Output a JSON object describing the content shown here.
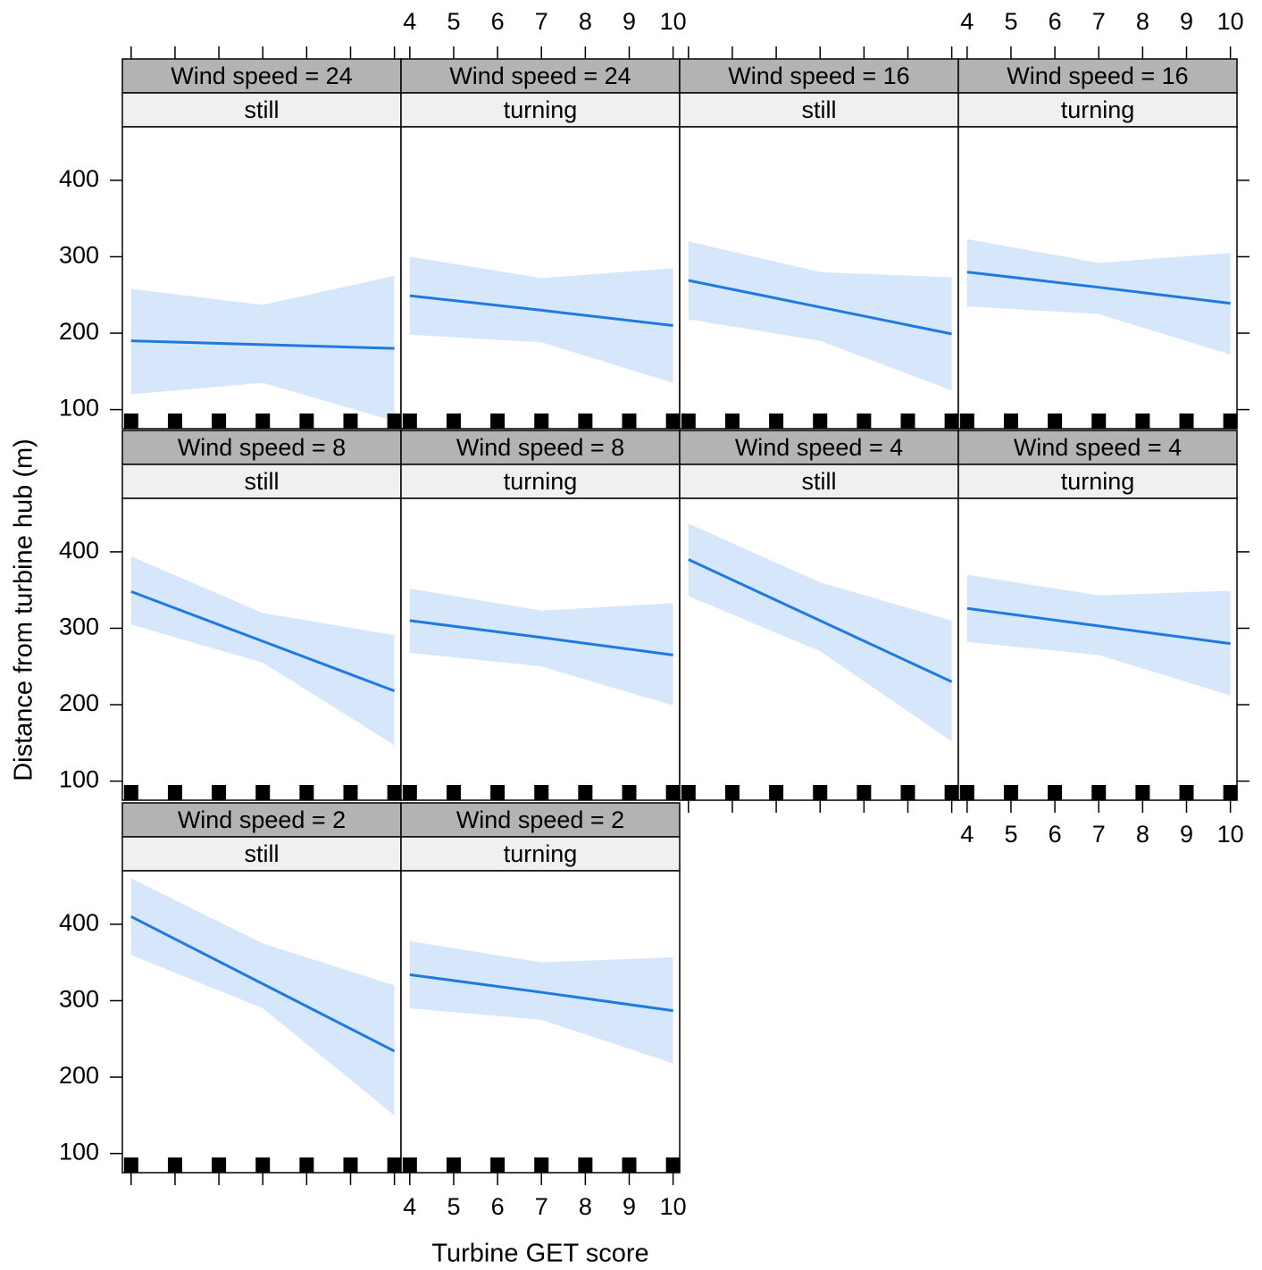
{
  "chart_data": {
    "type": "line",
    "xlabel": "Turbine GET score",
    "ylabel": "Distance from turbine hub (m)",
    "x": [
      4,
      7,
      10
    ],
    "xlim": [
      3.8,
      10.15
    ],
    "ylim": [
      75,
      470
    ],
    "xticks": [
      4,
      5,
      6,
      7,
      8,
      9,
      10
    ],
    "yticks": [
      100,
      200,
      300,
      400
    ],
    "rug": [
      4,
      5,
      6,
      7,
      8,
      9,
      10
    ],
    "line_color": "#1f7ae0",
    "band_color": "#d6e7fb",
    "panels": [
      {
        "strips": [
          "Wind speed = 24",
          "still"
        ],
        "fit": [
          190,
          185,
          180
        ],
        "upper": [
          258,
          237,
          275
        ],
        "lower": [
          120,
          135,
          85
        ]
      },
      {
        "strips": [
          "Wind speed = 24",
          "turning"
        ],
        "fit": [
          249,
          230,
          210
        ],
        "upper": [
          300,
          272,
          285
        ],
        "lower": [
          198,
          188,
          135
        ]
      },
      {
        "strips": [
          "Wind speed = 16",
          "still"
        ],
        "fit": [
          269,
          234,
          199
        ],
        "upper": [
          320,
          280,
          273
        ],
        "lower": [
          218,
          190,
          125
        ]
      },
      {
        "strips": [
          "Wind speed = 16",
          "turning"
        ],
        "fit": [
          280,
          260,
          239
        ],
        "upper": [
          323,
          292,
          305
        ],
        "lower": [
          235,
          225,
          172
        ]
      },
      {
        "strips": [
          "Wind speed = 8",
          "still"
        ],
        "fit": [
          348,
          283,
          218
        ],
        "upper": [
          394,
          320,
          291
        ],
        "lower": [
          305,
          255,
          147
        ]
      },
      {
        "strips": [
          "Wind speed = 8",
          "turning"
        ],
        "fit": [
          310,
          288,
          265
        ],
        "upper": [
          352,
          323,
          333
        ],
        "lower": [
          268,
          250,
          199
        ]
      },
      {
        "strips": [
          "Wind speed = 4",
          "still"
        ],
        "fit": [
          390,
          310,
          230
        ],
        "upper": [
          437,
          360,
          310
        ],
        "lower": [
          342,
          270,
          152
        ]
      },
      {
        "strips": [
          "Wind speed = 4",
          "turning"
        ],
        "fit": [
          326,
          303,
          280
        ],
        "upper": [
          370,
          343,
          349
        ],
        "lower": [
          282,
          265,
          212
        ]
      },
      {
        "strips": [
          "Wind speed = 2",
          "still"
        ],
        "fit": [
          410,
          322,
          234
        ],
        "upper": [
          460,
          375,
          320
        ],
        "lower": [
          360,
          290,
          150
        ]
      },
      {
        "strips": [
          "Wind speed = 2",
          "turning"
        ],
        "fit": [
          334,
          311,
          287
        ],
        "upper": [
          378,
          350,
          357
        ],
        "lower": [
          290,
          275,
          218
        ]
      }
    ]
  }
}
